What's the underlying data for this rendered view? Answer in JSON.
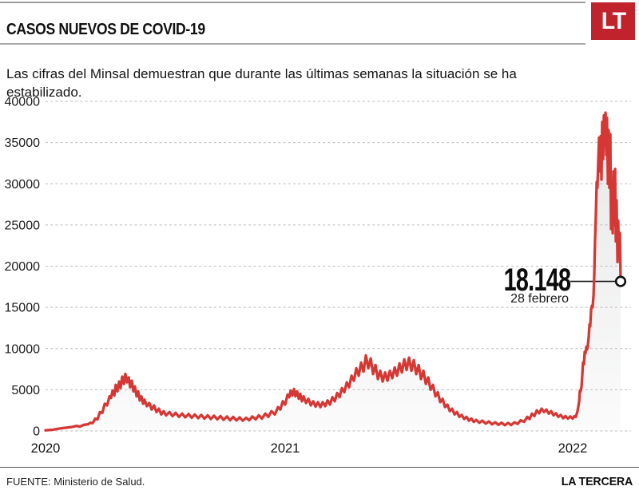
{
  "header": {
    "title": "CASOS NUEVOS DE COVID-19",
    "logo_text": "LT"
  },
  "subtitle": "Las cifras del Minsal demuestran que durante las últimas semanas la situación se ha estabilizado.",
  "footer": {
    "source": "FUENTE: Ministerio de Salud.",
    "brand": "LA TERCERA"
  },
  "colors": {
    "line": "#d53834",
    "area_top": "#e6e7e7",
    "area_bottom": "#fbfbfb",
    "grid": "#bcbcbc",
    "logo_bg": "#c0232b",
    "accent_text": "#111111"
  },
  "chart_data": {
    "type": "area",
    "title": "Casos nuevos de COVID-19",
    "xlabel": "",
    "ylabel": "",
    "x_unit": "months since March 2020",
    "ylim": [
      0,
      40000
    ],
    "grid": "horizontal-dashed",
    "ytick_values": [
      0,
      5000,
      10000,
      15000,
      20000,
      25000,
      30000,
      35000,
      40000
    ],
    "ytick_labels": [
      "0",
      "5000",
      "10000",
      "15000",
      "20000",
      "25000",
      "30000",
      "35000",
      "40000"
    ],
    "xticks": [
      {
        "m": 0,
        "label": "2020"
      },
      {
        "m": 10,
        "label": "2021"
      },
      {
        "m": 22,
        "label": "2022"
      }
    ],
    "annotation": {
      "m": 24,
      "value": 18148,
      "value_label": "18.148",
      "date_label": "28 febrero"
    },
    "series": [
      {
        "name": "casos nuevos diarios",
        "points": [
          [
            0,
            80
          ],
          [
            0.3,
            150
          ],
          [
            0.6,
            300
          ],
          [
            0.9,
            420
          ],
          [
            1.1,
            480
          ],
          [
            1.3,
            620
          ],
          [
            1.43,
            520
          ],
          [
            1.6,
            750
          ],
          [
            1.77,
            800
          ],
          [
            1.87,
            1000
          ],
          [
            1.97,
            950
          ],
          [
            2.07,
            1500
          ],
          [
            2.17,
            1400
          ],
          [
            2.27,
            2300
          ],
          [
            2.37,
            2200
          ],
          [
            2.47,
            3300
          ],
          [
            2.57,
            3100
          ],
          [
            2.67,
            4200
          ],
          [
            2.73,
            4000
          ],
          [
            2.8,
            4900
          ],
          [
            2.87,
            4300
          ],
          [
            2.93,
            5600
          ],
          [
            3.0,
            4800
          ],
          [
            3.07,
            6000
          ],
          [
            3.13,
            5200
          ],
          [
            3.2,
            6600
          ],
          [
            3.27,
            5700
          ],
          [
            3.33,
            6938
          ],
          [
            3.4,
            5900
          ],
          [
            3.47,
            6500
          ],
          [
            3.53,
            5300
          ],
          [
            3.6,
            6100
          ],
          [
            3.67,
            4800
          ],
          [
            3.73,
            5400
          ],
          [
            3.8,
            4200
          ],
          [
            3.87,
            4800
          ],
          [
            3.93,
            3700
          ],
          [
            4.0,
            4200
          ],
          [
            4.07,
            3300
          ],
          [
            4.13,
            3800
          ],
          [
            4.23,
            3000
          ],
          [
            4.33,
            3400
          ],
          [
            4.43,
            2600
          ],
          [
            4.53,
            3100
          ],
          [
            4.63,
            2300
          ],
          [
            4.73,
            2700
          ],
          [
            4.83,
            2000
          ],
          [
            4.93,
            2400
          ],
          [
            5.03,
            1900
          ],
          [
            5.17,
            2300
          ],
          [
            5.3,
            1800
          ],
          [
            5.43,
            2200
          ],
          [
            5.57,
            1700
          ],
          [
            5.7,
            2100
          ],
          [
            5.83,
            1650
          ],
          [
            5.97,
            2050
          ],
          [
            6.1,
            1600
          ],
          [
            6.23,
            2000
          ],
          [
            6.37,
            1550
          ],
          [
            6.5,
            1950
          ],
          [
            6.63,
            1500
          ],
          [
            6.77,
            1900
          ],
          [
            6.9,
            1450
          ],
          [
            7.03,
            1850
          ],
          [
            7.17,
            1400
          ],
          [
            7.3,
            1800
          ],
          [
            7.43,
            1350
          ],
          [
            7.57,
            1750
          ],
          [
            7.7,
            1300
          ],
          [
            7.83,
            1700
          ],
          [
            7.97,
            1280
          ],
          [
            8.1,
            1650
          ],
          [
            8.23,
            1250
          ],
          [
            8.37,
            1600
          ],
          [
            8.5,
            1300
          ],
          [
            8.63,
            1750
          ],
          [
            8.77,
            1400
          ],
          [
            8.9,
            1900
          ],
          [
            9.03,
            1500
          ],
          [
            9.17,
            2100
          ],
          [
            9.3,
            1700
          ],
          [
            9.43,
            2400
          ],
          [
            9.57,
            2000
          ],
          [
            9.7,
            2900
          ],
          [
            9.8,
            2600
          ],
          [
            9.9,
            3600
          ],
          [
            10.0,
            3200
          ],
          [
            10.1,
            4400
          ],
          [
            10.17,
            4100
          ],
          [
            10.23,
            4900
          ],
          [
            10.3,
            4300
          ],
          [
            10.37,
            5100
          ],
          [
            10.43,
            4200
          ],
          [
            10.5,
            4800
          ],
          [
            10.57,
            3900
          ],
          [
            10.63,
            4500
          ],
          [
            10.7,
            3600
          ],
          [
            10.77,
            4200
          ],
          [
            10.87,
            3400
          ],
          [
            10.97,
            3900
          ],
          [
            11.07,
            3100
          ],
          [
            11.17,
            3600
          ],
          [
            11.27,
            2950
          ],
          [
            11.37,
            3500
          ],
          [
            11.47,
            2900
          ],
          [
            11.57,
            3500
          ],
          [
            11.67,
            3000
          ],
          [
            11.77,
            3700
          ],
          [
            11.87,
            3200
          ],
          [
            11.97,
            4100
          ],
          [
            12.07,
            3600
          ],
          [
            12.17,
            4600
          ],
          [
            12.27,
            4100
          ],
          [
            12.37,
            5200
          ],
          [
            12.47,
            4700
          ],
          [
            12.57,
            5900
          ],
          [
            12.67,
            5300
          ],
          [
            12.77,
            6700
          ],
          [
            12.87,
            6100
          ],
          [
            12.97,
            7600
          ],
          [
            13.07,
            6700
          ],
          [
            13.17,
            8300
          ],
          [
            13.27,
            7200
          ],
          [
            13.37,
            9171
          ],
          [
            13.47,
            7600
          ],
          [
            13.57,
            8800
          ],
          [
            13.67,
            6900
          ],
          [
            13.77,
            8000
          ],
          [
            13.87,
            6300
          ],
          [
            13.97,
            7300
          ],
          [
            14.07,
            6000
          ],
          [
            14.17,
            7100
          ],
          [
            14.27,
            6100
          ],
          [
            14.37,
            7300
          ],
          [
            14.47,
            6400
          ],
          [
            14.57,
            7700
          ],
          [
            14.67,
            6700
          ],
          [
            14.77,
            8200
          ],
          [
            14.87,
            7100
          ],
          [
            14.97,
            8700
          ],
          [
            15.07,
            7400
          ],
          [
            15.17,
            8900
          ],
          [
            15.27,
            7300
          ],
          [
            15.37,
            8600
          ],
          [
            15.47,
            6900
          ],
          [
            15.57,
            8000
          ],
          [
            15.67,
            6300
          ],
          [
            15.77,
            7300
          ],
          [
            15.87,
            5700
          ],
          [
            15.97,
            6500
          ],
          [
            16.07,
            5000
          ],
          [
            16.17,
            5600
          ],
          [
            16.27,
            4200
          ],
          [
            16.37,
            4700
          ],
          [
            16.47,
            3500
          ],
          [
            16.57,
            3900
          ],
          [
            16.67,
            2900
          ],
          [
            16.77,
            3200
          ],
          [
            16.87,
            2400
          ],
          [
            16.97,
            2700
          ],
          [
            17.07,
            2000
          ],
          [
            17.17,
            2300
          ],
          [
            17.27,
            1700
          ],
          [
            17.37,
            1950
          ],
          [
            17.47,
            1450
          ],
          [
            17.57,
            1700
          ],
          [
            17.67,
            1250
          ],
          [
            17.77,
            1500
          ],
          [
            17.87,
            1100
          ],
          [
            17.97,
            1350
          ],
          [
            18.1,
            1000
          ],
          [
            18.23,
            1250
          ],
          [
            18.37,
            900
          ],
          [
            18.5,
            1150
          ],
          [
            18.63,
            800
          ],
          [
            18.77,
            1050
          ],
          [
            18.9,
            750
          ],
          [
            19.03,
            1000
          ],
          [
            19.17,
            700
          ],
          [
            19.3,
            980
          ],
          [
            19.43,
            720
          ],
          [
            19.57,
            1050
          ],
          [
            19.7,
            850
          ],
          [
            19.83,
            1300
          ],
          [
            19.97,
            1100
          ],
          [
            20.1,
            1700
          ],
          [
            20.2,
            1450
          ],
          [
            20.3,
            2100
          ],
          [
            20.4,
            1800
          ],
          [
            20.5,
            2500
          ],
          [
            20.6,
            2150
          ],
          [
            20.7,
            2700
          ],
          [
            20.8,
            2300
          ],
          [
            20.9,
            2600
          ],
          [
            21.0,
            2100
          ],
          [
            21.1,
            2400
          ],
          [
            21.2,
            1900
          ],
          [
            21.3,
            2150
          ],
          [
            21.4,
            1700
          ],
          [
            21.5,
            1950
          ],
          [
            21.6,
            1550
          ],
          [
            21.7,
            1800
          ],
          [
            21.8,
            1500
          ],
          [
            21.9,
            1750
          ],
          [
            22.0,
            1500
          ],
          [
            22.07,
            1800
          ],
          [
            22.13,
            1700
          ],
          [
            22.2,
            2400
          ],
          [
            22.27,
            3600
          ],
          [
            22.3,
            4900
          ],
          [
            22.33,
            4800
          ],
          [
            22.37,
            5400
          ],
          [
            22.4,
            6800
          ],
          [
            22.43,
            8300
          ],
          [
            22.47,
            8100
          ],
          [
            22.5,
            9600
          ],
          [
            22.53,
            9400
          ],
          [
            22.57,
            10200
          ],
          [
            22.6,
            9900
          ],
          [
            22.63,
            10300
          ],
          [
            22.67,
            11500
          ],
          [
            22.7,
            12900
          ],
          [
            22.73,
            12700
          ],
          [
            22.77,
            14800
          ],
          [
            22.8,
            15200
          ],
          [
            22.83,
            15000
          ],
          [
            22.87,
            16500
          ],
          [
            22.9,
            19000
          ],
          [
            22.93,
            23000
          ],
          [
            22.97,
            26500
          ],
          [
            23.0,
            30200
          ],
          [
            23.03,
            29500
          ],
          [
            23.07,
            33000
          ],
          [
            23.1,
            35600
          ],
          [
            23.13,
            31500
          ],
          [
            23.17,
            35800
          ],
          [
            23.2,
            30500
          ],
          [
            23.23,
            37500
          ],
          [
            23.27,
            33000
          ],
          [
            23.3,
            38300
          ],
          [
            23.33,
            34500
          ],
          [
            23.37,
            38631
          ],
          [
            23.4,
            33500
          ],
          [
            23.43,
            38000
          ],
          [
            23.47,
            30000
          ],
          [
            23.5,
            36500
          ],
          [
            23.53,
            29500
          ],
          [
            23.57,
            36000
          ],
          [
            23.6,
            24500
          ],
          [
            23.63,
            30000
          ],
          [
            23.67,
            24000
          ],
          [
            23.7,
            31500
          ],
          [
            23.73,
            25000
          ],
          [
            23.77,
            31800
          ],
          [
            23.8,
            23000
          ],
          [
            23.83,
            28000
          ],
          [
            23.87,
            20500
          ],
          [
            23.9,
            25500
          ],
          [
            23.93,
            21000
          ],
          [
            23.97,
            24000
          ],
          [
            24.0,
            18148
          ]
        ]
      }
    ]
  }
}
